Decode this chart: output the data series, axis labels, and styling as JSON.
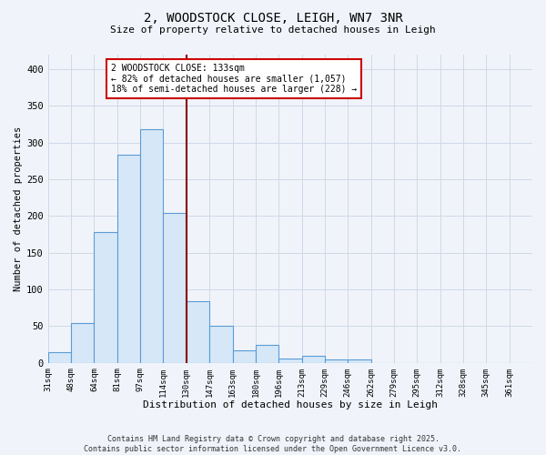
{
  "title": "2, WOODSTOCK CLOSE, LEIGH, WN7 3NR",
  "subtitle": "Size of property relative to detached houses in Leigh",
  "bar_values": [
    14,
    54,
    178,
    283,
    318,
    204,
    84,
    51,
    17,
    25,
    6,
    9,
    4,
    4,
    0,
    0,
    0,
    0,
    0,
    0,
    0
  ],
  "bin_labels": [
    "31sqm",
    "48sqm",
    "64sqm",
    "81sqm",
    "97sqm",
    "114sqm",
    "130sqm",
    "147sqm",
    "163sqm",
    "180sqm",
    "196sqm",
    "213sqm",
    "229sqm",
    "246sqm",
    "262sqm",
    "279sqm",
    "295sqm",
    "312sqm",
    "328sqm",
    "345sqm",
    "361sqm"
  ],
  "bar_color_fill": "#d6e8f7",
  "bar_color_edge": "#5b9bd5",
  "vline_x": 6,
  "vline_color": "#8b0000",
  "annotation_title": "2 WOODSTOCK CLOSE: 133sqm",
  "annotation_line1": "← 82% of detached houses are smaller (1,057)",
  "annotation_line2": "18% of semi-detached houses are larger (228) →",
  "annotation_box_color": "#ffffff",
  "annotation_box_edge": "#cc0000",
  "xlabel": "Distribution of detached houses by size in Leigh",
  "ylabel": "Number of detached properties",
  "ylim": [
    0,
    420
  ],
  "yticks": [
    0,
    50,
    100,
    150,
    200,
    250,
    300,
    350,
    400
  ],
  "grid_color": "#d0d8e8",
  "bg_color": "#f0f4fa",
  "footer_line1": "Contains HM Land Registry data © Crown copyright and database right 2025.",
  "footer_line2": "Contains public sector information licensed under the Open Government Licence v3.0."
}
